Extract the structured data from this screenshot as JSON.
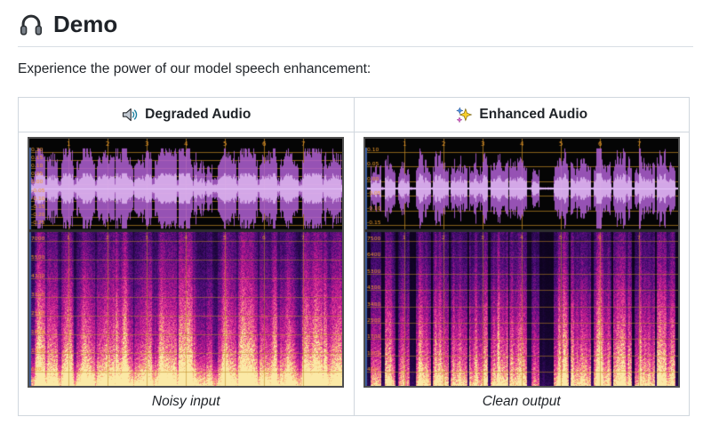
{
  "page": {
    "heading": "Demo",
    "heading_icon": "headphones-icon",
    "intro": "Experience the power of our model speech enhancement:"
  },
  "table": {
    "columns": [
      {
        "header": "Degraded Audio",
        "icon": "speaker-icon",
        "caption": "Noisy input"
      },
      {
        "header": "Enhanced Audio",
        "icon": "sparkles-icon",
        "caption": "Clean output"
      }
    ]
  },
  "visualization": {
    "time_ticks": [
      "1",
      "2",
      "3",
      "4",
      "5",
      "6",
      "7"
    ],
    "colors": {
      "wave": "#b060d4",
      "wave_core": "#e2bdf4",
      "grid": "#a8791c",
      "tick_label": "#ef9b2a",
      "panel_bg": "#050505",
      "panel_gap": "#2e2e2e",
      "panel_border": "#4f4f4f",
      "left_strip": "#3c5e9e",
      "table_border": "#d0d7de",
      "text": "#1f2328",
      "spec_palette": [
        "#070211",
        "#1e0640",
        "#4a0d78",
        "#8c1389",
        "#c21c8e",
        "#e83f96",
        "#f47d92",
        "#f7b071",
        "#fbe9a6"
      ]
    },
    "columns": [
      {
        "id": "degraded",
        "seed": 7,
        "noise_floor": 0.3,
        "spec_noise": 0.55,
        "spec_gain": 0.5,
        "bottom_glow": 0.95,
        "wave_labels": [
          "0.20",
          "0.15",
          "0.10",
          "0.05",
          "0.00",
          "-0.05",
          "-0.10",
          "-0.15",
          "-0.20",
          "-0.25"
        ],
        "spec_labels": [
          "7000",
          "5500",
          "4300",
          "3300",
          "2500",
          "1800",
          "1200",
          "600"
        ],
        "segments": [
          [
            0.015,
            0.05,
            0.8
          ],
          [
            0.055,
            0.09,
            0.65
          ],
          [
            0.1,
            0.14,
            0.85
          ],
          [
            0.15,
            0.21,
            0.8
          ],
          [
            0.215,
            0.27,
            0.75
          ],
          [
            0.275,
            0.33,
            0.85
          ],
          [
            0.335,
            0.39,
            0.7
          ],
          [
            0.4,
            0.47,
            0.85
          ],
          [
            0.475,
            0.52,
            0.75
          ],
          [
            0.525,
            0.56,
            0.55
          ],
          [
            0.565,
            0.585,
            0.35
          ],
          [
            0.6,
            0.66,
            0.8
          ],
          [
            0.665,
            0.73,
            0.75
          ],
          [
            0.735,
            0.79,
            0.85
          ],
          [
            0.8,
            0.86,
            0.75
          ],
          [
            0.87,
            0.935,
            0.8
          ],
          [
            0.94,
            0.995,
            0.7
          ]
        ]
      },
      {
        "id": "enhanced",
        "seed": 13,
        "noise_floor": 0.035,
        "spec_noise": 0.14,
        "spec_gain": 0.95,
        "bottom_glow": 0.55,
        "wave_labels": [
          "0.10",
          "0.05",
          "0.00",
          "-0.05",
          "-0.10",
          "-0.15"
        ],
        "spec_labels": [
          "7500",
          "6400",
          "5300",
          "4300",
          "3400",
          "2500",
          "1700",
          "1000",
          "400"
        ],
        "segments": [
          [
            0.015,
            0.05,
            0.85
          ],
          [
            0.06,
            0.095,
            0.7
          ],
          [
            0.105,
            0.14,
            0.6
          ],
          [
            0.16,
            0.21,
            0.9
          ],
          [
            0.215,
            0.265,
            0.8
          ],
          [
            0.27,
            0.325,
            0.85
          ],
          [
            0.33,
            0.39,
            0.75
          ],
          [
            0.4,
            0.455,
            0.9
          ],
          [
            0.46,
            0.515,
            0.7
          ],
          [
            0.53,
            0.555,
            0.45
          ],
          [
            0.6,
            0.65,
            0.85
          ],
          [
            0.655,
            0.72,
            0.8
          ],
          [
            0.73,
            0.785,
            0.9
          ],
          [
            0.79,
            0.85,
            0.75
          ],
          [
            0.86,
            0.925,
            0.85
          ],
          [
            0.93,
            0.99,
            0.8
          ]
        ]
      }
    ]
  }
}
